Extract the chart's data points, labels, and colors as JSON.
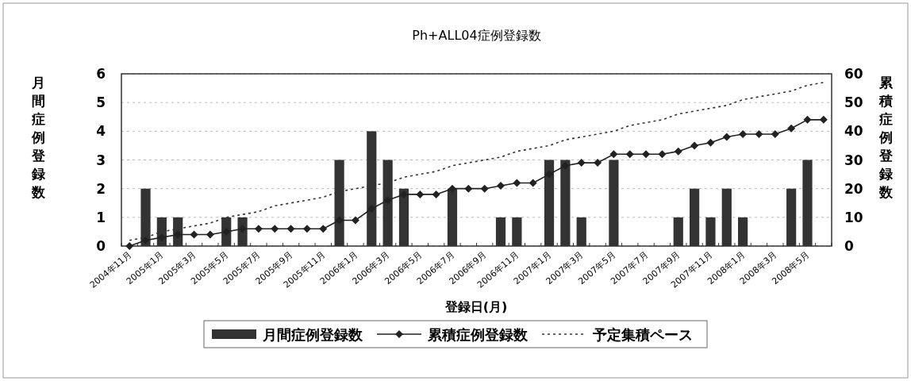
{
  "chart_data": {
    "type": "bar",
    "title": "Ph+ALL04症例登録数",
    "xlabel": "登録日(月)",
    "ylabel": "月間症例登録数",
    "y2label": "累積症例登録数",
    "categories": [
      "2004年11月",
      null,
      "2005年1月",
      null,
      "2005年3月",
      null,
      "2005年5月",
      null,
      "2005年7月",
      null,
      "2005年9月",
      null,
      "2005年11月",
      null,
      "2006年1月",
      null,
      "2006年3月",
      null,
      "2006年5月",
      null,
      "2006年7月",
      null,
      "2006年9月",
      null,
      "2006年11月",
      null,
      "2007年1月",
      null,
      "2007年3月",
      null,
      "2007年5月",
      null,
      "2007年7月",
      null,
      "2007年9月",
      null,
      "2007年11月",
      null,
      "2008年1月",
      null,
      "2008年3月",
      null,
      "2008年5月",
      null
    ],
    "series": [
      {
        "name": "月間症例登録数",
        "color": "#333333",
        "values": [
          0,
          2,
          1,
          1,
          0,
          0,
          1,
          1,
          0,
          0,
          0,
          0,
          0,
          3,
          0,
          4,
          3,
          2,
          0,
          0,
          2,
          0,
          0,
          1,
          1,
          0,
          3,
          3,
          1,
          0,
          3,
          0,
          0,
          0,
          1,
          2,
          1,
          2,
          1,
          0,
          0,
          2,
          3,
          0
        ]
      },
      {
        "name": "累積症例登録数",
        "type": "line",
        "axis": "y2",
        "color": "#222222",
        "marker": "diamond",
        "line_style": "solid",
        "values": [
          0,
          2,
          3,
          4,
          4,
          4,
          5,
          6,
          6,
          6,
          6,
          6,
          6,
          9,
          9,
          13,
          16,
          18,
          18,
          18,
          20,
          20,
          20,
          21,
          22,
          22,
          25,
          28,
          29,
          29,
          32,
          32,
          32,
          32,
          33,
          35,
          36,
          38,
          39,
          39,
          39,
          41,
          44,
          44
        ]
      },
      {
        "name": "予定集積ペース",
        "type": "line",
        "axis": "y2",
        "color": "#333333",
        "marker": "none",
        "line_style": "dashed",
        "values": [
          2,
          3,
          5,
          6,
          7,
          8,
          10,
          11,
          12,
          14,
          15,
          16,
          17,
          19,
          20,
          21,
          22,
          24,
          25,
          26,
          28,
          29,
          30,
          31,
          33,
          34,
          35,
          37,
          38,
          39,
          40,
          42,
          43,
          44,
          46,
          47,
          48,
          49,
          51,
          52,
          53,
          54,
          56,
          57
        ]
      }
    ],
    "ylim": [
      0,
      6
    ],
    "yticks": [
      0,
      1,
      2,
      3,
      4,
      5,
      6
    ],
    "y2lim": [
      0,
      60
    ],
    "y2ticks": [
      0,
      10,
      20,
      30,
      40,
      50,
      60
    ],
    "grid": "y",
    "legend": "bottom"
  }
}
